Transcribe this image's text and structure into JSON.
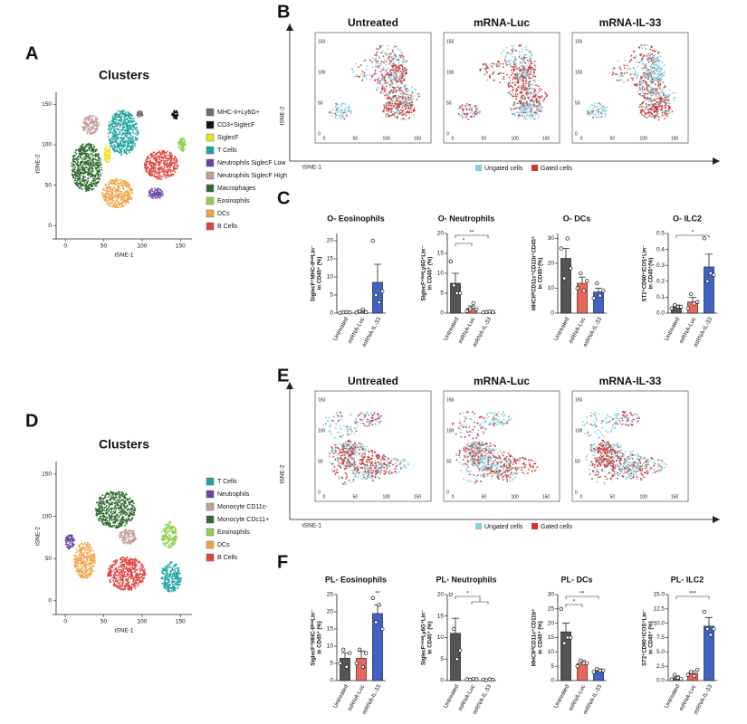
{
  "panel_labels": [
    "A",
    "B",
    "C",
    "D",
    "E",
    "F"
  ],
  "panel_a": {
    "title": "Clusters",
    "xlabel": "tSNE-1",
    "ylabel": "tSNE-2",
    "xlim": [
      -12,
      165
    ],
    "ylim": [
      -12,
      165
    ],
    "ticks": [
      0,
      50,
      100,
      150
    ],
    "clusters": [
      {
        "name": "MHC-II+Ly6G+",
        "color": "#6f6f6f"
      },
      {
        "name": "CD3+SiglecF",
        "color": "#111111"
      },
      {
        "name": "SiglecF",
        "color": "#eee21a"
      },
      {
        "name": "T Cells",
        "color": "#1ea3a3"
      },
      {
        "name": "Neutrophils SiglecF Low",
        "color": "#6b45a6"
      },
      {
        "name": "Neutrophils SiglecF High",
        "color": "#c79d9b"
      },
      {
        "name": "Macrophages",
        "color": "#2f6b2f"
      },
      {
        "name": "Eosinophils",
        "color": "#8fd14f"
      },
      {
        "name": "DCs",
        "color": "#f3a244"
      },
      {
        "name": "B Cells",
        "color": "#e1443f"
      }
    ]
  },
  "panel_b": {
    "groups": [
      "Untreated",
      "mRNA-Luc",
      "mRNA-IL-33"
    ],
    "xlabel": "tSNE-1",
    "ylabel": "tSNE-2",
    "ticks": [
      0,
      50,
      100,
      150
    ],
    "legend": [
      {
        "name": "Ungated cells",
        "color": "#86cde0"
      },
      {
        "name": "Gated cells",
        "color": "#d4352e"
      }
    ]
  },
  "panel_d": {
    "title": "Clusters",
    "xlabel": "tSNE-1",
    "ylabel": "tSNE-2",
    "xlim": [
      -12,
      165
    ],
    "ylim": [
      -12,
      165
    ],
    "ticks": [
      0,
      50,
      100,
      150
    ],
    "clusters": [
      {
        "name": "T Cells",
        "color": "#1ea3a3"
      },
      {
        "name": "Neutrophils",
        "color": "#6b45a6"
      },
      {
        "name": "Monocyte CD11c-",
        "color": "#c79d9b"
      },
      {
        "name": "Monocyte CDc11+",
        "color": "#2f6b2f"
      },
      {
        "name": "Eosinophils",
        "color": "#8fd14f"
      },
      {
        "name": "DCs",
        "color": "#f3a244"
      },
      {
        "name": "B Cells",
        "color": "#e1443f"
      }
    ]
  },
  "panel_e": {
    "groups": [
      "Untreated",
      "mRNA-Luc",
      "mRNA-IL-33"
    ],
    "xlabel": "tSNE-1",
    "ylabel": "tSNE-2",
    "ticks": [
      0,
      50,
      100,
      150
    ],
    "legend": [
      {
        "name": "Ungated cells",
        "color": "#86cde0"
      },
      {
        "name": "Gated cells",
        "color": "#d4352e"
      }
    ]
  },
  "chart_data": [
    {
      "type": "bar",
      "title": "O- Eosinophils",
      "ylabel": [
        "SiglecF⁺MHC-IIˡᵒʷLin⁻",
        "in CD45⁺ (%)"
      ],
      "categories": [
        "Untreated",
        "mRNA-Luc",
        "mRNA-IL-33"
      ],
      "colors": [
        "#555555",
        "#e8675a",
        "#3f62c4"
      ],
      "values": [
        0.2,
        0.5,
        8.5
      ],
      "errors": [
        0.1,
        0.3,
        5
      ],
      "points": [
        [
          0.1,
          0.2,
          0.3,
          0.2
        ],
        [
          0.2,
          0.5,
          1.0,
          0.3
        ],
        [
          20,
          5,
          3,
          6
        ]
      ],
      "ylim": [
        0,
        22
      ],
      "yticks": [
        0,
        5,
        10,
        15,
        20
      ],
      "significance": []
    },
    {
      "type": "bar",
      "title": "O- Neutrophils",
      "ylabel": [
        "SiglecF⁺ˡᵒʷLy6G⁺Lin⁻",
        "in CD45⁺ (%)"
      ],
      "categories": [
        "Untreated",
        "mRNA-Luc",
        "mRNA-IL-33"
      ],
      "colors": [
        "#555555",
        "#e8675a",
        "#3f62c4"
      ],
      "values": [
        7.5,
        1.2,
        0.3
      ],
      "errors": [
        2.5,
        0.6,
        0.1
      ],
      "points": [
        [
          13,
          7,
          5,
          5
        ],
        [
          0.5,
          1,
          2.5,
          1
        ],
        [
          0.2,
          0.3,
          0.4,
          0.3
        ]
      ],
      "ylim": [
        0,
        20
      ],
      "yticks": [
        0,
        5,
        10,
        15,
        20
      ],
      "significance": [
        {
          "label": "*",
          "between": [
            "Untreated",
            "mRNA-Luc"
          ]
        },
        {
          "label": "**",
          "between": [
            "Untreated",
            "mRNA-IL-33"
          ]
        }
      ]
    },
    {
      "type": "bar",
      "title": "O- DCs",
      "ylabel": [
        "MHCIIʰⁱCD11c⁺CD11b⁺CD45⁺",
        "in CD45⁺(%)"
      ],
      "categories": [
        "Untreated",
        "mRNA-Luc",
        "mRNA-IL-33"
      ],
      "colors": [
        "#555555",
        "#e8675a",
        "#3f62c4"
      ],
      "values": [
        22,
        12,
        8.5
      ],
      "errors": [
        4,
        2.5,
        1.5
      ],
      "points": [
        [
          26,
          14,
          30,
          18
        ],
        [
          10,
          16,
          9,
          13
        ],
        [
          6,
          12,
          7,
          9
        ]
      ],
      "ylim": [
        0,
        32
      ],
      "yticks": [
        0,
        10,
        20,
        30
      ],
      "significance": []
    },
    {
      "type": "bar",
      "title": "O- ILC2",
      "ylabel": [
        "ST2⁺CD90⁺ICOS⁺Lin⁻",
        "in CD45⁺(%)"
      ],
      "categories": [
        "Untreated",
        "mRNA-Luc",
        "mRNA-IL-33"
      ],
      "colors": [
        "#555555",
        "#e8675a",
        "#3f62c4"
      ],
      "values": [
        0.04,
        0.07,
        0.29
      ],
      "errors": [
        0.01,
        0.03,
        0.08
      ],
      "points": [
        [
          0.03,
          0.05,
          0.04,
          0.04
        ],
        [
          0.03,
          0.12,
          0.06,
          0.07
        ],
        [
          0.47,
          0.2,
          0.25,
          0.24
        ]
      ],
      "ylim": [
        0,
        0.5
      ],
      "yticks": [
        {
          "value": 0,
          "label": "0.0"
        },
        0.1,
        0.2,
        0.3,
        0.4,
        0.5
      ],
      "significance": [
        {
          "label": "*",
          "between": [
            "Untreated",
            "mRNA-IL-33"
          ]
        }
      ]
    },
    {
      "type": "bar",
      "title": "PL- Eosinophils",
      "ylabel": [
        "SiglecF⁺MHC-IIˡᵒʷLin⁻",
        "in CD45⁺ (%)"
      ],
      "categories": [
        "Untreated",
        "mRNA-Luc",
        "mRNA-IL-33"
      ],
      "colors": [
        "#555555",
        "#e8675a",
        "#3f62c4"
      ],
      "values": [
        6.5,
        6.5,
        19.5
      ],
      "errors": [
        1.5,
        2,
        2.5
      ],
      "points": [
        [
          5,
          9,
          4,
          8
        ],
        [
          5,
          9,
          4,
          8
        ],
        [
          24,
          17,
          22,
          15
        ]
      ],
      "ylim": [
        0,
        25
      ],
      "yticks": [
        0,
        5,
        10,
        15,
        20,
        25
      ],
      "significance": [
        {
          "label": "**",
          "between": [
            "mRNA-IL-33"
          ]
        }
      ]
    },
    {
      "type": "bar",
      "title": "PL- Neutrophils",
      "ylabel": [
        "SiglecF⁺ˡᵒʷLy6G⁺Lin⁻",
        "in CD45⁺ (%)"
      ],
      "categories": [
        "Untreated",
        "mRNA-Luc",
        "mRNA-IL-33"
      ],
      "colors": [
        "#555555",
        "#e8675a",
        "#3f62c4"
      ],
      "values": [
        11,
        0.3,
        0.2
      ],
      "errors": [
        3.5,
        0.1,
        0.1
      ],
      "points": [
        [
          20,
          12,
          5,
          7
        ],
        [
          0.3,
          0.2,
          0.4,
          0.3
        ],
        [
          0.2,
          0.1,
          0.3,
          0.2
        ]
      ],
      "ylim": [
        0,
        20
      ],
      "yticks": [
        0,
        5,
        10,
        15,
        20
      ],
      "significance": [
        {
          "label": "*",
          "between": [
            "Untreated",
            "mRNA-Luc",
            "mRNA-IL-33"
          ]
        }
      ]
    },
    {
      "type": "bar",
      "title": "PL- DCs",
      "ylabel": [
        "MHCIIʰⁱCD11c⁺CD11b⁺",
        "in CD45⁺ (%)"
      ],
      "categories": [
        "Untreated",
        "mRNA-Luc",
        "mRNA-IL-33"
      ],
      "colors": [
        "#555555",
        "#e8675a",
        "#3f62c4"
      ],
      "values": [
        17,
        6,
        3.5
      ],
      "errors": [
        3,
        1,
        0.5
      ],
      "points": [
        [
          25,
          13,
          15,
          15
        ],
        [
          5,
          7,
          6,
          6
        ],
        [
          3,
          4,
          3.5,
          3.5
        ]
      ],
      "ylim": [
        0,
        30
      ],
      "yticks": [
        0,
        5,
        10,
        15,
        20,
        25,
        30
      ],
      "significance": [
        {
          "label": "*",
          "between": [
            "Untreated",
            "mRNA-Luc"
          ]
        },
        {
          "label": "**",
          "between": [
            "Untreated",
            "mRNA-IL-33"
          ]
        }
      ]
    },
    {
      "type": "bar",
      "title": "PL- ILC2",
      "ylabel": [
        "ST2⁺CD90⁺ICOS⁺Lin⁻",
        "in CD45⁺ (%)"
      ],
      "categories": [
        "Untreated",
        "mRNA-Luc",
        "mRNA-IL-33"
      ],
      "colors": [
        "#555555",
        "#e8675a",
        "#3f62c4"
      ],
      "values": [
        0.5,
        1.3,
        9.5
      ],
      "errors": [
        0.3,
        0.4,
        1.5
      ],
      "points": [
        [
          0.2,
          1,
          0.5,
          0.3
        ],
        [
          1,
          1.5,
          0.8,
          1.9
        ],
        [
          12,
          9,
          8,
          9
        ]
      ],
      "ylim": [
        0,
        15
      ],
      "yticks": [
        {
          "value": 0,
          "label": "0.0"
        },
        {
          "value": 2.5,
          "label": "2.5"
        },
        {
          "value": 5,
          "label": "5.0"
        },
        {
          "value": 7.5,
          "label": "7.5"
        },
        {
          "value": 10,
          "label": "10.0"
        },
        {
          "value": 12.5,
          "label": "12.5"
        },
        {
          "value": 15,
          "label": "15.0"
        }
      ],
      "significance": [
        {
          "label": "***",
          "between": [
            "Untreated",
            "mRNA-IL-33"
          ]
        }
      ]
    }
  ]
}
